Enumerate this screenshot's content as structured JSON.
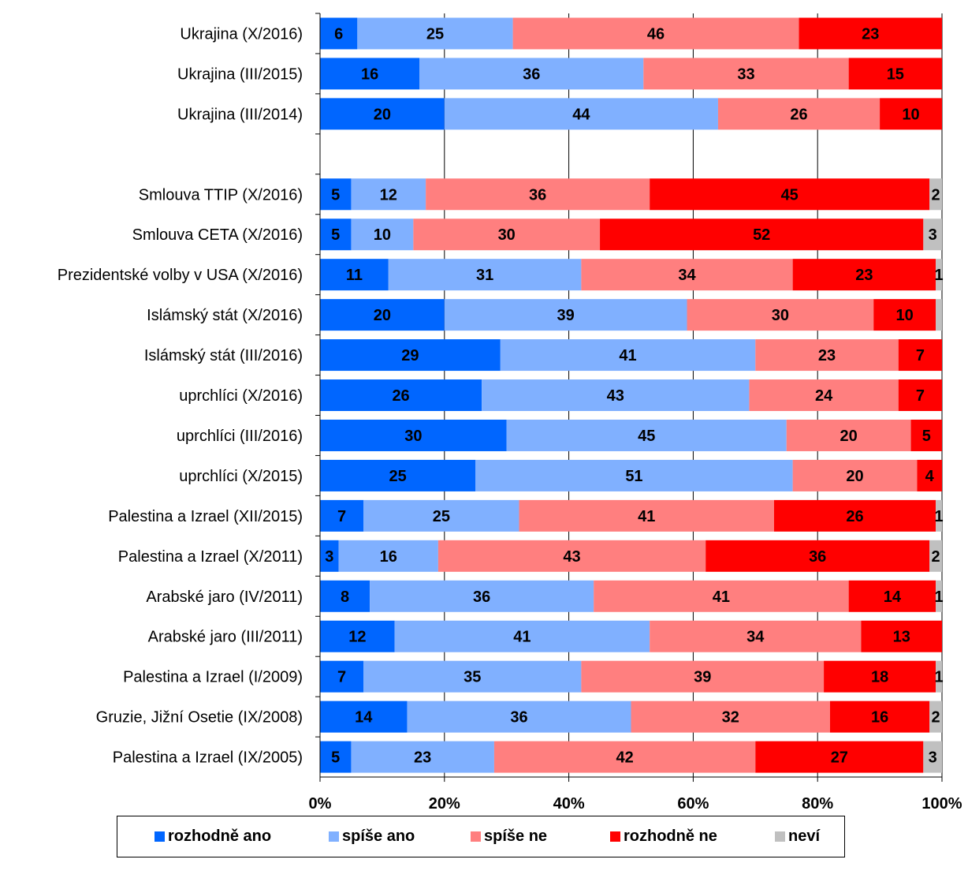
{
  "chart_data": {
    "type": "bar",
    "orientation": "horizontal",
    "stacked": "percent",
    "categories": [
      "Ukrajina (X/2016)",
      "Ukrajina (III/2015)",
      "Ukrajina (III/2014)",
      "",
      "Smlouva TTIP (X/2016)",
      "Smlouva CETA (X/2016)",
      "Prezidentské volby v USA (X/2016)",
      "Islámský stát (X/2016)",
      "Islámský stát (III/2016)",
      "uprchlíci (X/2016)",
      "uprchlíci (III/2016)",
      "uprchlíci (X/2015)",
      "Palestina a Izrael (XII/2015)",
      "Palestina a Izrael (X/2011)",
      "Arabské jaro (IV/2011)",
      "Arabské jaro (III/2011)",
      "Palestina a Izrael (I/2009)",
      "Gruzie, Jižní Osetie (IX/2008)",
      "Palestina a Izrael (IX/2005)"
    ],
    "series": [
      {
        "name": "rozhodně ano",
        "color": "#0066ff",
        "values": [
          6,
          16,
          20,
          null,
          5,
          5,
          11,
          20,
          29,
          26,
          30,
          25,
          7,
          3,
          8,
          12,
          7,
          14,
          5
        ]
      },
      {
        "name": "spíše ano",
        "color": "#80b0ff",
        "values": [
          25,
          36,
          44,
          null,
          12,
          10,
          31,
          39,
          41,
          43,
          45,
          51,
          25,
          16,
          36,
          41,
          35,
          36,
          23
        ]
      },
      {
        "name": "spíše ne",
        "color": "#ff7f7f",
        "values": [
          46,
          33,
          26,
          null,
          36,
          30,
          34,
          30,
          23,
          24,
          20,
          20,
          41,
          43,
          41,
          34,
          39,
          32,
          42
        ]
      },
      {
        "name": "rozhodně ne",
        "color": "#ff0000",
        "values": [
          23,
          15,
          10,
          null,
          45,
          52,
          23,
          10,
          7,
          7,
          5,
          4,
          26,
          36,
          14,
          13,
          18,
          16,
          27
        ]
      },
      {
        "name": "neví",
        "color": "#c0c0c0",
        "values": [
          0,
          0,
          0,
          null,
          2,
          3,
          1,
          1,
          0,
          0,
          0,
          0,
          1,
          2,
          1,
          0,
          1,
          2,
          3
        ]
      }
    ],
    "show_value_labels": [
      [
        true,
        true,
        true,
        false,
        true,
        true,
        true,
        true,
        true,
        true,
        true,
        true,
        true,
        true,
        true,
        true,
        true,
        true,
        true
      ],
      [
        true,
        true,
        true,
        false,
        true,
        true,
        true,
        true,
        true,
        true,
        true,
        true,
        true,
        true,
        true,
        true,
        true,
        true,
        true
      ],
      [
        true,
        true,
        true,
        false,
        true,
        true,
        true,
        true,
        true,
        true,
        true,
        true,
        true,
        true,
        true,
        true,
        true,
        true,
        true
      ],
      [
        true,
        true,
        true,
        false,
        true,
        true,
        true,
        true,
        true,
        true,
        true,
        true,
        true,
        true,
        true,
        true,
        true,
        true,
        true
      ],
      [
        false,
        false,
        false,
        false,
        true,
        true,
        true,
        false,
        false,
        false,
        false,
        false,
        true,
        true,
        true,
        false,
        true,
        true,
        true
      ]
    ],
    "x_ticks": [
      "0%",
      "20%",
      "40%",
      "60%",
      "80%",
      "100%"
    ],
    "xlim": [
      0,
      100
    ],
    "grid": "vertical",
    "legend_position": "bottom",
    "title": "",
    "xlabel": "",
    "ylabel": ""
  }
}
